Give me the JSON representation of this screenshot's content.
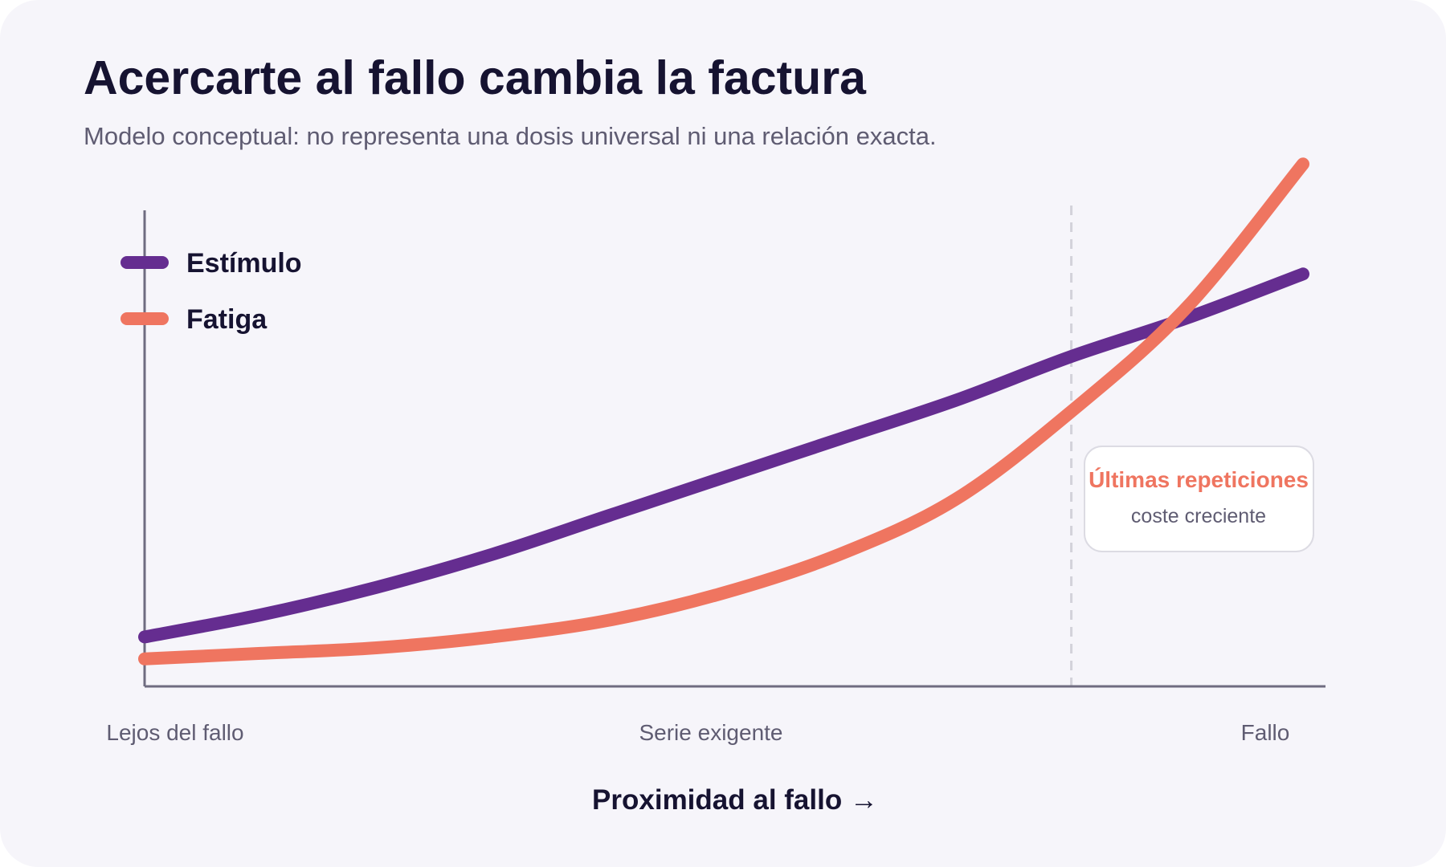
{
  "title": "Acercarte al fallo cambia la factura",
  "subtitle": "Modelo conceptual: no representa una dosis universal ni una relación exacta.",
  "chart_data": {
    "type": "line",
    "xlabel": "Proximidad al fallo →",
    "ylabel": "",
    "x_ticks": [
      {
        "x": 0,
        "label": "Lejos del fallo"
      },
      {
        "x": 0.5,
        "label": "Serie exigente"
      },
      {
        "x": 1,
        "label": "Fallo"
      }
    ],
    "xlim": [
      0,
      1
    ],
    "ylim": [
      0,
      1
    ],
    "grid": false,
    "legend_position": "top-left",
    "series": [
      {
        "name": "Estímulo",
        "color": "#652d90",
        "x": [
          0,
          0.1,
          0.2,
          0.3,
          0.4,
          0.5,
          0.6,
          0.7,
          0.8,
          0.9,
          1
        ],
        "y": [
          0.09,
          0.13,
          0.18,
          0.24,
          0.31,
          0.38,
          0.45,
          0.52,
          0.6,
          0.67,
          0.75
        ]
      },
      {
        "name": "Fatiga",
        "color": "#ef7560",
        "x": [
          0,
          0.1,
          0.2,
          0.3,
          0.4,
          0.5,
          0.6,
          0.7,
          0.8,
          0.9,
          1
        ],
        "y": [
          0.05,
          0.06,
          0.07,
          0.09,
          0.12,
          0.17,
          0.24,
          0.34,
          0.5,
          0.69,
          0.95
        ]
      }
    ],
    "marker_line": {
      "x": 0.8,
      "style": "dashed",
      "color": "#d3d2da"
    },
    "annotation": {
      "title": "Últimas repeticiones",
      "text": "coste creciente",
      "title_color": "#ef7560"
    }
  }
}
